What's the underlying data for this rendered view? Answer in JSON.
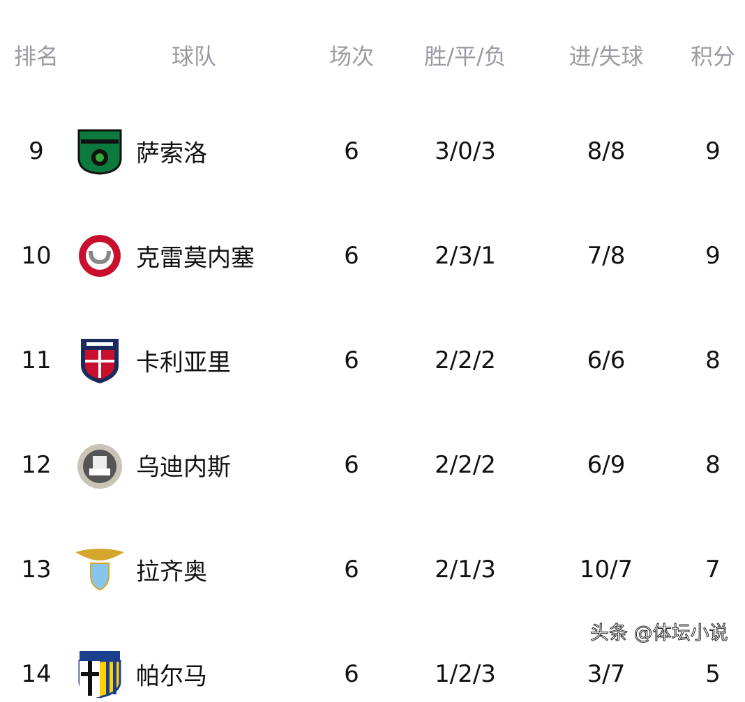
{
  "header": {
    "rank": "排名",
    "team": "球队",
    "played": "场次",
    "wdl": "胜/平/负",
    "goals": "进/失球",
    "points": "积分"
  },
  "rows": [
    {
      "rank": "9",
      "team": "萨索洛",
      "logo": "sassuolo-logo",
      "played": "6",
      "wdl": "3/0/3",
      "goals": "8/8",
      "points": "9"
    },
    {
      "rank": "10",
      "team": "克雷莫内塞",
      "logo": "cremonese-logo",
      "played": "6",
      "wdl": "2/3/1",
      "goals": "7/8",
      "points": "9"
    },
    {
      "rank": "11",
      "team": "卡利亚里",
      "logo": "cagliari-logo",
      "played": "6",
      "wdl": "2/2/2",
      "goals": "6/6",
      "points": "8"
    },
    {
      "rank": "12",
      "team": "乌迪内斯",
      "logo": "udinese-logo",
      "played": "6",
      "wdl": "2/2/2",
      "goals": "6/9",
      "points": "8"
    },
    {
      "rank": "13",
      "team": "拉齐奥",
      "logo": "lazio-logo",
      "played": "6",
      "wdl": "2/1/3",
      "goals": "10/7",
      "points": "7"
    },
    {
      "rank": "14",
      "team": "帕尔马",
      "logo": "parma-logo",
      "played": "6",
      "wdl": "1/2/3",
      "goals": "3/7",
      "points": "5"
    }
  ],
  "watermark": "头条 @体坛小说",
  "colors": {
    "header_text": "#9a9ba3",
    "body_text": "#111111"
  }
}
